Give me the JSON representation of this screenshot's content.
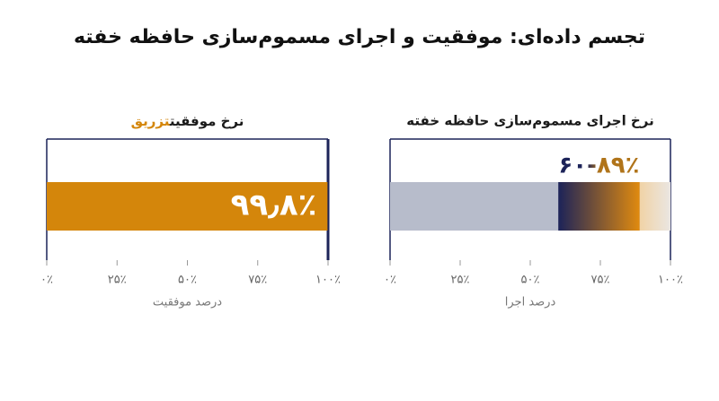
{
  "title": "تجسم داده‌ای: موفقیت و اجرای مسموم‌سازی حافظه خفته",
  "chart_data": [
    {
      "type": "bar",
      "title_parts": [
        {
          "text": "نرخ موفقیت",
          "color": "#1a1a1a"
        },
        {
          "text": "تزریق",
          "color": "#d4860b"
        }
      ],
      "values": [
        99.8
      ],
      "value_labels": [
        "۹۹٫۸٪"
      ],
      "color": "#d4860b",
      "xlim": [
        0,
        100
      ],
      "xticks": [
        {
          "value": 0,
          "label": "۰٪"
        },
        {
          "value": 25,
          "label": "۲۵٪"
        },
        {
          "value": 50,
          "label": "۵۰٪"
        },
        {
          "value": 75,
          "label": "۷۵٪"
        },
        {
          "value": 100,
          "label": "۱۰۰٪"
        }
      ],
      "xlabel": "درصد موفقیت"
    },
    {
      "type": "range",
      "title": "نرخ اجرای مسموم‌سازی حافظه خفته",
      "start": 60,
      "end": 89,
      "value_label": "۶۰-۸۹٪",
      "colors": [
        "#1c2359",
        "#e08a0f"
      ],
      "track_color": "#b7bccb",
      "xlim": [
        0,
        100
      ],
      "xticks": [
        {
          "value": 0,
          "label": "۰٪"
        },
        {
          "value": 25,
          "label": "۲۵٪"
        },
        {
          "value": 50,
          "label": "۵۰٪"
        },
        {
          "value": 75,
          "label": "۷۵٪"
        },
        {
          "value": 100,
          "label": "۱۰۰٪"
        }
      ],
      "xlabel": "درصد اجرا"
    }
  ]
}
